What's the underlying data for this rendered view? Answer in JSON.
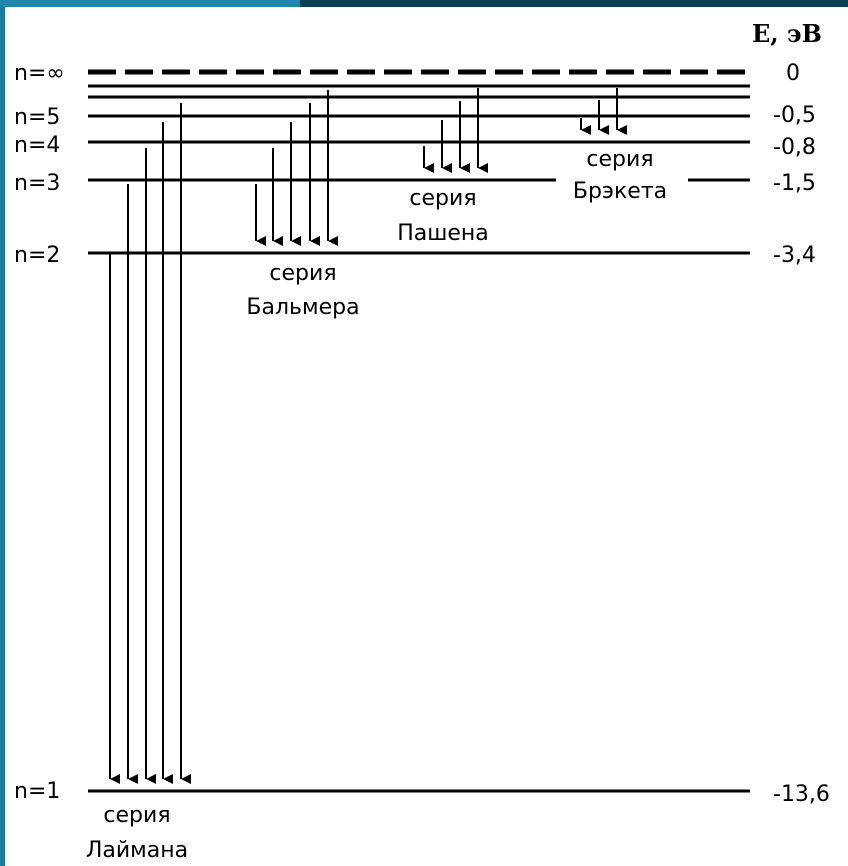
{
  "axis": {
    "unit_label": "E, эВ"
  },
  "levels": [
    {
      "n_label": "n=∞",
      "energy_label": "0"
    },
    {
      "n_label": "n=5",
      "energy_label": "-0,5"
    },
    {
      "n_label": "n=4",
      "energy_label": "-0,8"
    },
    {
      "n_label": "n=3",
      "energy_label": "-1,5"
    },
    {
      "n_label": "n=2",
      "energy_label": "-3,4"
    },
    {
      "n_label": "n=1",
      "energy_label": "-13,6"
    }
  ],
  "series": {
    "lyman": {
      "line1": "серия",
      "line2": "Лаймана"
    },
    "balmer": {
      "line1": "серия",
      "line2": "Бальмера"
    },
    "paschen": {
      "line1": "серия",
      "line2": "Пашена"
    },
    "brackett": {
      "line1": "серия",
      "line2": "Брэкета"
    }
  },
  "colors": {
    "frame_left": "#1e7ba0",
    "frame_top_right": "#0d3f57",
    "lines": "#000000"
  }
}
